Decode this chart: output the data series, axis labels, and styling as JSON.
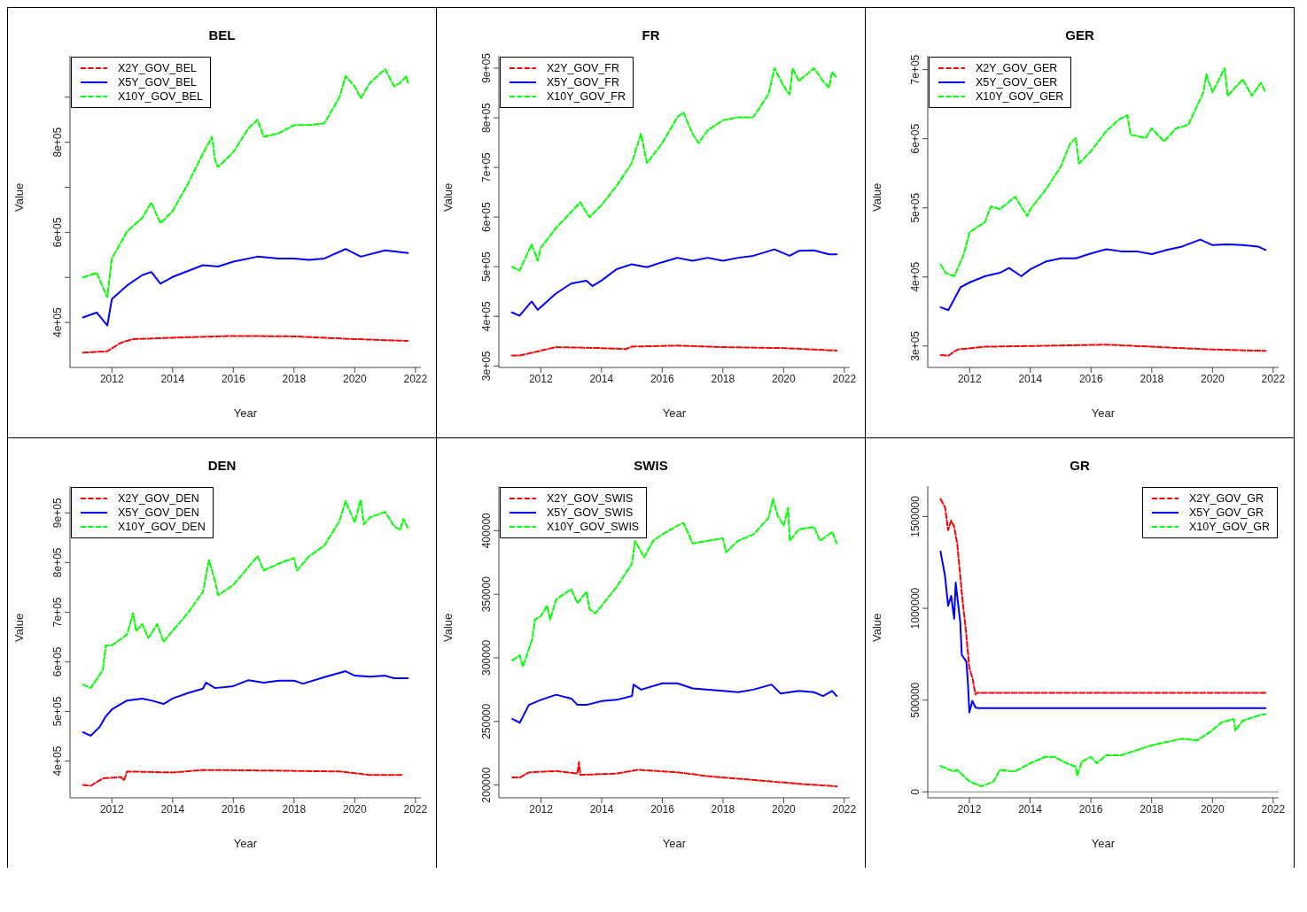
{
  "chart_data": [
    {
      "type": "line",
      "title": "BEL",
      "xlabel": "Year",
      "ylabel": "Value",
      "xlim": [
        2010.62,
        2022.18
      ],
      "xticks": [
        2012,
        2014,
        2016,
        2018,
        2020,
        2022
      ],
      "ylim": [
        300000,
        992000
      ],
      "yticks": [
        {
          "value": 400000,
          "label": "4e+05"
        },
        {
          "value": 500000,
          "label": null
        },
        {
          "value": 600000,
          "label": "6e+05"
        },
        {
          "value": 700000,
          "label": null
        },
        {
          "value": 800000,
          "label": "8e+05"
        },
        {
          "value": 900000,
          "label": null
        }
      ],
      "grid": false,
      "legend": "top left",
      "series": [
        {
          "name": "X2Y_GOV_BEL",
          "color": "#ff0000",
          "line_style": "dashed",
          "x": [
            2011.05,
            2011.85,
            2012.3,
            2012.7,
            2014,
            2016,
            2018,
            2020,
            2021.75
          ],
          "values": [
            333000,
            336000,
            355000,
            363000,
            366000,
            370000,
            369000,
            363000,
            359000
          ]
        },
        {
          "name": "X5Y_GOV_BEL",
          "color": "#0000ff",
          "line_style": "solid",
          "x": [
            2011.05,
            2011.5,
            2011.85,
            2012,
            2012.5,
            2013,
            2013.3,
            2013.6,
            2014,
            2015,
            2015.5,
            2016,
            2016.8,
            2017.5,
            2018,
            2018.5,
            2019,
            2019.7,
            2020.2,
            2021,
            2021.75
          ],
          "values": [
            411000,
            422000,
            393000,
            452000,
            482000,
            505000,
            512000,
            486000,
            501000,
            527000,
            524000,
            535000,
            546000,
            542000,
            542000,
            539000,
            542000,
            563000,
            546000,
            560000,
            554000
          ]
        },
        {
          "name": "X10Y_GOV_BEL",
          "color": "#00ff00",
          "line_style": "dashed",
          "x": [
            2011.05,
            2011.5,
            2011.85,
            2012,
            2012.5,
            2013,
            2013.3,
            2013.6,
            2014,
            2014.5,
            2015,
            2015.3,
            2015.4,
            2015.5,
            2016,
            2016.5,
            2016.8,
            2017,
            2017.5,
            2018,
            2018.5,
            2019,
            2019.5,
            2019.7,
            2020,
            2020.2,
            2020.5,
            2021,
            2021.3,
            2021.5,
            2021.7,
            2021.75
          ],
          "values": [
            500000,
            510000,
            456000,
            542000,
            602000,
            632000,
            666000,
            620000,
            647000,
            707000,
            775000,
            812000,
            760000,
            745000,
            778000,
            831000,
            850000,
            812000,
            820000,
            838000,
            838000,
            842000,
            900000,
            947000,
            924000,
            898000,
            932000,
            962000,
            924000,
            932000,
            947000,
            932000
          ]
        }
      ]
    },
    {
      "type": "line",
      "title": "FR",
      "xlabel": "Year",
      "ylabel": "Value",
      "xlim": [
        2010.62,
        2022.18
      ],
      "xticks": [
        2012,
        2014,
        2016,
        2018,
        2020,
        2022
      ],
      "ylim": [
        297000,
        925000
      ],
      "yticks": [
        {
          "value": 300000,
          "label": "3e+05"
        },
        {
          "value": 400000,
          "label": "4e+05"
        },
        {
          "value": 500000,
          "label": "5e+05"
        },
        {
          "value": 600000,
          "label": "6e+05"
        },
        {
          "value": 700000,
          "label": "7e+05"
        },
        {
          "value": 800000,
          "label": "8e+05"
        },
        {
          "value": 900000,
          "label": "9e+05"
        }
      ],
      "grid": false,
      "legend": "top left",
      "series": [
        {
          "name": "X2Y_GOV_FR",
          "color": "#ff0000",
          "line_style": "dashed",
          "x": [
            2011.05,
            2011.3,
            2011.8,
            2012.5,
            2014,
            2014.8,
            2015,
            2016.5,
            2018,
            2020,
            2021.75
          ],
          "values": [
            321000,
            321000,
            328000,
            338000,
            336000,
            334000,
            339000,
            341000,
            338000,
            336000,
            331000
          ]
        },
        {
          "name": "X5Y_GOV_FR",
          "color": "#0000ff",
          "line_style": "solid",
          "x": [
            2011.05,
            2011.3,
            2011.7,
            2011.9,
            2012.5,
            2013,
            2013.5,
            2013.7,
            2014,
            2014.5,
            2015,
            2015.5,
            2016,
            2016.5,
            2017,
            2017.5,
            2018,
            2018.5,
            2019,
            2019.7,
            2020.2,
            2020.5,
            2021,
            2021.5,
            2021.75
          ],
          "values": [
            408000,
            401000,
            430000,
            413000,
            446000,
            466000,
            472000,
            461000,
            472000,
            495000,
            505000,
            499000,
            509000,
            518000,
            512000,
            518000,
            512000,
            518000,
            522000,
            535000,
            522000,
            532000,
            533000,
            525000,
            525000
          ]
        },
        {
          "name": "X10Y_GOV_FR",
          "color": "#00ff00",
          "line_style": "dashed",
          "x": [
            2011.05,
            2011.3,
            2011.7,
            2011.9,
            2012,
            2012.5,
            2013,
            2013.3,
            2013.6,
            2014,
            2014.5,
            2015,
            2015.3,
            2015.5,
            2016,
            2016.5,
            2016.7,
            2017,
            2017.2,
            2017.5,
            2018,
            2018.5,
            2019,
            2019.5,
            2019.7,
            2020,
            2020.2,
            2020.3,
            2020.5,
            2021,
            2021.3,
            2021.5,
            2021.6,
            2021.75
          ],
          "values": [
            500000,
            492000,
            545000,
            512000,
            538000,
            578000,
            610000,
            630000,
            600000,
            624000,
            663000,
            709000,
            768000,
            709000,
            749000,
            801000,
            811000,
            768000,
            749000,
            775000,
            795000,
            801000,
            801000,
            847000,
            900000,
            864000,
            847000,
            900000,
            874000,
            900000,
            874000,
            861000,
            893000,
            880000
          ]
        }
      ]
    },
    {
      "type": "line",
      "title": "GER",
      "xlabel": "Year",
      "ylabel": "Value",
      "xlim": [
        2010.62,
        2022.18
      ],
      "xticks": [
        2012,
        2014,
        2016,
        2018,
        2020,
        2022
      ],
      "ylim": [
        269000,
        720000
      ],
      "yticks": [
        {
          "value": 300000,
          "label": "3e+05"
        },
        {
          "value": 400000,
          "label": "4e+05"
        },
        {
          "value": 500000,
          "label": "5e+05"
        },
        {
          "value": 600000,
          "label": "6e+05"
        },
        {
          "value": 700000,
          "label": "7e+05"
        }
      ],
      "grid": false,
      "legend": "top left",
      "series": [
        {
          "name": "X2Y_GOV_GER",
          "color": "#ff0000",
          "line_style": "dashed",
          "x": [
            2011.05,
            2011.3,
            2011.6,
            2012.5,
            2014,
            2016.5,
            2018,
            2020,
            2021.75
          ],
          "values": [
            287000,
            286000,
            295000,
            299000,
            300000,
            302000,
            299000,
            295000,
            293000
          ]
        },
        {
          "name": "X5Y_GOV_GER",
          "color": "#0000ff",
          "line_style": "solid",
          "x": [
            2011.05,
            2011.3,
            2011.7,
            2012,
            2012.5,
            2013,
            2013.3,
            2013.7,
            2014,
            2014.5,
            2015,
            2015.5,
            2016,
            2016.5,
            2017,
            2017.5,
            2018,
            2018.5,
            2019,
            2019.6,
            2020,
            2020.5,
            2021,
            2021.5,
            2021.75
          ],
          "values": [
            356000,
            352000,
            385000,
            392000,
            401000,
            406000,
            413000,
            401000,
            411000,
            422000,
            427000,
            427000,
            434000,
            440000,
            437000,
            437000,
            433000,
            439000,
            444000,
            454000,
            446000,
            447000,
            446000,
            444000,
            439000
          ]
        },
        {
          "name": "X10Y_GOV_GER",
          "color": "#00ff00",
          "line_style": "dashed",
          "x": [
            2011.05,
            2011.2,
            2011.5,
            2011.8,
            2012,
            2012.5,
            2012.7,
            2013,
            2013.5,
            2013.9,
            2014,
            2014.5,
            2015,
            2015.3,
            2015.5,
            2015.6,
            2016,
            2016.5,
            2016.9,
            2017.2,
            2017.3,
            2017.8,
            2018,
            2018.4,
            2018.8,
            2019.2,
            2019.7,
            2019.8,
            2020,
            2020.4,
            2020.5,
            2021,
            2021.3,
            2021.6,
            2021.75
          ],
          "values": [
            418000,
            406000,
            401000,
            432000,
            465000,
            479000,
            502000,
            498000,
            516000,
            488000,
            498000,
            526000,
            559000,
            592000,
            601000,
            564000,
            582000,
            611000,
            627000,
            634000,
            606000,
            601000,
            615000,
            596000,
            615000,
            620000,
            667000,
            693000,
            667000,
            702000,
            662000,
            686000,
            662000,
            681000,
            667000
          ]
        }
      ]
    },
    {
      "type": "line",
      "title": "DEN",
      "xlabel": "Year",
      "ylabel": "Value",
      "xlim": [
        2010.62,
        2022.18
      ],
      "xticks": [
        2012,
        2014,
        2016,
        2018,
        2020,
        2022
      ],
      "ylim": [
        326000,
        954000
      ],
      "yticks": [
        {
          "value": 400000,
          "label": "4e+05"
        },
        {
          "value": 500000,
          "label": "5e+05"
        },
        {
          "value": 600000,
          "label": "6e+05"
        },
        {
          "value": 700000,
          "label": "7e+05"
        },
        {
          "value": 800000,
          "label": "8e+05"
        },
        {
          "value": 900000,
          "label": "9e+05"
        }
      ],
      "grid": false,
      "legend": "top left",
      "series": [
        {
          "name": "X2Y_GOV_DEN",
          "color": "#ff0000",
          "line_style": "dashed",
          "x": [
            2011.05,
            2011.3,
            2011.7,
            2012.3,
            2012.4,
            2012.5,
            2014,
            2015,
            2017,
            2019.5,
            2020.5,
            2021.6
          ],
          "values": [
            352000,
            350000,
            365000,
            368000,
            361000,
            379000,
            377000,
            382000,
            381000,
            379000,
            372000,
            372000
          ]
        },
        {
          "name": "X5Y_GOV_DEN",
          "color": "#0000ff",
          "line_style": "solid",
          "x": [
            2011.05,
            2011.3,
            2011.6,
            2011.8,
            2012,
            2012.5,
            2013,
            2013.3,
            2013.7,
            2014,
            2014.5,
            2015,
            2015.1,
            2015.4,
            2016,
            2016.5,
            2017,
            2017.5,
            2018,
            2018.3,
            2019,
            2019.7,
            2020,
            2020.5,
            2021,
            2021.3,
            2021.75
          ],
          "values": [
            458000,
            451000,
            469000,
            490000,
            504000,
            522000,
            526000,
            522000,
            515000,
            526000,
            537000,
            546000,
            558000,
            547000,
            551000,
            563000,
            558000,
            562000,
            562000,
            556000,
            569000,
            581000,
            572000,
            570000,
            572000,
            567000,
            567000
          ]
        },
        {
          "name": "X10Y_GOV_DEN",
          "color": "#00ff00",
          "line_style": "dashed",
          "x": [
            2011.05,
            2011.3,
            2011.7,
            2011.8,
            2012,
            2012.5,
            2012.7,
            2012.8,
            2013,
            2013.2,
            2013.5,
            2013.7,
            2013.9,
            2014.5,
            2015,
            2015.2,
            2015.4,
            2015.5,
            2016,
            2016.5,
            2016.8,
            2017,
            2017.5,
            2018,
            2018.1,
            2018.5,
            2019,
            2019.5,
            2019.7,
            2020,
            2020.2,
            2020.3,
            2020.5,
            2021,
            2021.3,
            2021.5,
            2021.6,
            2021.75
          ],
          "values": [
            554000,
            547000,
            583000,
            633000,
            633000,
            655000,
            698000,
            662000,
            676000,
            648000,
            676000,
            640000,
            655000,
            698000,
            741000,
            805000,
            762000,
            734000,
            755000,
            791000,
            813000,
            784000,
            798000,
            809000,
            784000,
            813000,
            834000,
            884000,
            924000,
            881000,
            927000,
            877000,
            891000,
            902000,
            873000,
            866000,
            888000,
            870000
          ]
        }
      ]
    },
    {
      "type": "line",
      "title": "SWIS",
      "xlabel": "Year",
      "ylabel": "Value",
      "xlim": [
        2010.61,
        2022.18
      ],
      "xticks": [
        2012,
        2014,
        2016,
        2018,
        2020,
        2022
      ],
      "ylim": [
        190000,
        435000
      ],
      "yticks": [
        200000,
        250000,
        300000,
        350000,
        400000
      ],
      "grid": false,
      "legend": "top left",
      "series": [
        {
          "name": "X2Y_GOV_SWIS",
          "color": "#ff0000",
          "line_style": "dashed",
          "x": [
            2011.05,
            2011.3,
            2011.6,
            2012.5,
            2013.2,
            2013.25,
            2013.3,
            2014.5,
            2015.2,
            2016.5,
            2017.5,
            2018.5,
            2019.5,
            2020.5,
            2021.75
          ],
          "values": [
            206000,
            206000,
            210000,
            211000,
            209000,
            218000,
            208000,
            209000,
            212000,
            210000,
            207000,
            205000,
            203000,
            201000,
            199000
          ]
        },
        {
          "name": "X5Y_GOV_SWIS",
          "color": "#0000ff",
          "line_style": "solid",
          "x": [
            2011.05,
            2011.3,
            2011.6,
            2012,
            2012.5,
            2013,
            2013.2,
            2013.5,
            2014,
            2014.5,
            2015,
            2015.05,
            2015.3,
            2016,
            2016.5,
            2017,
            2018,
            2018.5,
            2019,
            2019.6,
            2019.9,
            2020.5,
            2021,
            2021.3,
            2021.6,
            2021.75
          ],
          "values": [
            252000,
            249000,
            263000,
            267000,
            271000,
            268000,
            263000,
            263000,
            266000,
            267000,
            270000,
            279000,
            275000,
            280000,
            280000,
            276000,
            274000,
            273000,
            275000,
            279000,
            272000,
            274000,
            273000,
            270000,
            274000,
            270000
          ]
        },
        {
          "name": "X10Y_GOV_SWIS",
          "color": "#00ff00",
          "line_style": "dashed",
          "x": [
            2011.05,
            2011.3,
            2011.4,
            2011.7,
            2011.8,
            2012,
            2012.2,
            2012.3,
            2012.5,
            2013,
            2013.2,
            2013.5,
            2013.6,
            2013.8,
            2014,
            2014.5,
            2015,
            2015.1,
            2015.4,
            2015.7,
            2016,
            2016.5,
            2016.7,
            2017,
            2017.5,
            2018,
            2018.1,
            2018.5,
            2019,
            2019.5,
            2019.65,
            2019.8,
            2020,
            2020.15,
            2020.2,
            2020.5,
            2021,
            2021.2,
            2021.6,
            2021.75
          ],
          "values": [
            298000,
            302000,
            293000,
            314000,
            330000,
            333000,
            341000,
            330000,
            346000,
            354000,
            343000,
            352000,
            338000,
            335000,
            341000,
            356000,
            374000,
            392000,
            379000,
            392000,
            397000,
            404000,
            406000,
            390000,
            392000,
            394000,
            383000,
            392000,
            397000,
            410000,
            425000,
            412000,
            404000,
            418000,
            392000,
            401000,
            403000,
            392000,
            399000,
            390000
          ]
        }
      ]
    },
    {
      "type": "line",
      "title": "GR",
      "xlabel": "Year",
      "ylabel": "Value",
      "xlim": [
        2010.63,
        2022.18
      ],
      "xticks": [
        2012,
        2014,
        2016,
        2018,
        2020,
        2022
      ],
      "ylim": [
        -32000,
        1666000
      ],
      "yticks": [
        0,
        500000,
        1000000,
        1500000
      ],
      "grid": false,
      "legend": "top right",
      "ref_lines": [
        {
          "axis": "y",
          "value": 0,
          "color": "#808080"
        }
      ],
      "series": [
        {
          "name": "X2Y_GOV_GR",
          "color": "#ff0000",
          "line_style": "dashed",
          "x": [
            2011.05,
            2011.2,
            2011.3,
            2011.4,
            2011.5,
            2011.6,
            2011.75,
            2011.9,
            2012,
            2012.1,
            2012.2,
            2012.25,
            2021.75
          ],
          "values": [
            1596000,
            1551000,
            1426000,
            1479000,
            1444000,
            1354000,
            1086000,
            853000,
            674000,
            621000,
            531000,
            540000,
            540000
          ]
        },
        {
          "name": "X5Y_GOV_GR",
          "color": "#0000ff",
          "line_style": "solid",
          "x": [
            2011.05,
            2011.2,
            2011.3,
            2011.4,
            2011.5,
            2011.55,
            2011.7,
            2011.75,
            2011.9,
            2011.95,
            2012,
            2012.1,
            2012.2,
            2012.3,
            2021.75
          ],
          "values": [
            1310000,
            1175000,
            1014000,
            1068000,
            943000,
            1140000,
            925000,
            746000,
            710000,
            603000,
            433000,
            496000,
            460000,
            456000,
            456000
          ]
        },
        {
          "name": "X10Y_GOV_GR",
          "color": "#00ff00",
          "line_style": "dashed",
          "x": [
            2011.05,
            2011.5,
            2011.6,
            2012,
            2012.4,
            2012.8,
            2013,
            2013.5,
            2014,
            2014.5,
            2014.8,
            2015.2,
            2015.5,
            2015.55,
            2015.7,
            2016,
            2016.2,
            2016.5,
            2017,
            2017.5,
            2018,
            2018.5,
            2019,
            2019.5,
            2020,
            2020.3,
            2020.7,
            2020.75,
            2021,
            2021.5,
            2021.75
          ],
          "values": [
            141000,
            111000,
            120000,
            57000,
            30000,
            57000,
            120000,
            111000,
            156000,
            191000,
            191000,
            156000,
            138000,
            88000,
            165000,
            191000,
            156000,
            200000,
            200000,
            227000,
            254000,
            272000,
            290000,
            281000,
            335000,
            379000,
            397000,
            335000,
            388000,
            415000,
            424000
          ]
        }
      ]
    }
  ]
}
